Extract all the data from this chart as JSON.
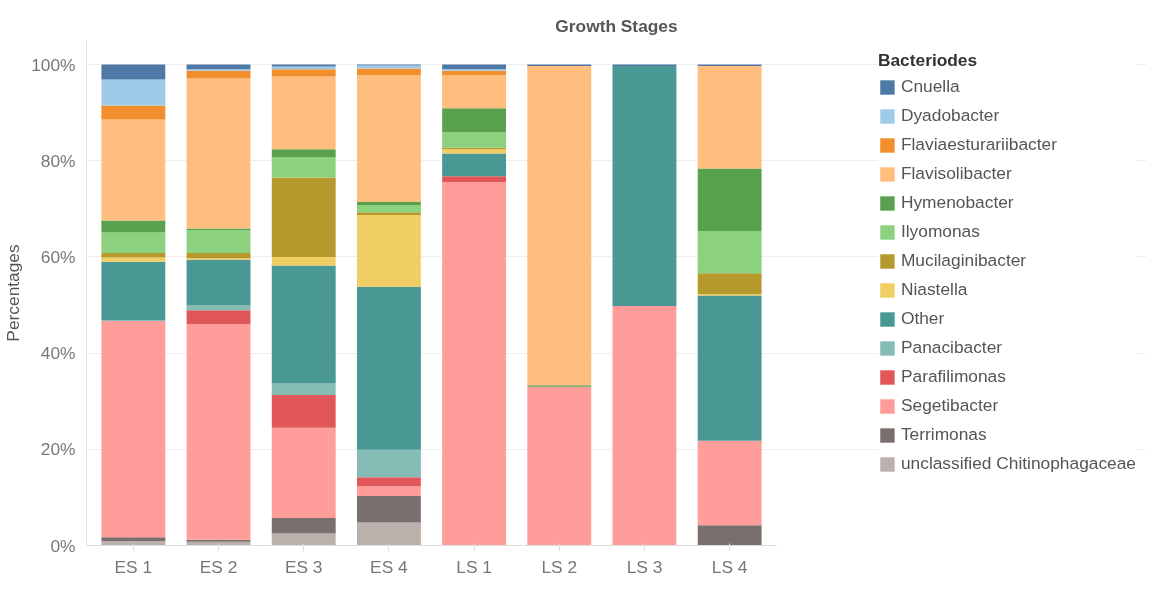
{
  "chart_data": {
    "type": "bar",
    "stacked": true,
    "title": "Growth Stages",
    "ylabel": "Percentages",
    "legend_title": "Bacteriodes",
    "categories": [
      "ES 1",
      "ES 2",
      "ES 3",
      "ES 4",
      "LS 1",
      "LS 2",
      "LS 3",
      "LS 4"
    ],
    "series": [
      {
        "name": "unclassified Chitinophagaceae",
        "color": "#bab0ac",
        "values": [
          0.9,
          0.8,
          2.5,
          4.8,
          null,
          null,
          null,
          null
        ]
      },
      {
        "name": "Terrimonas",
        "color": "#79706e",
        "values": [
          0.8,
          0.4,
          3.2,
          5.5,
          null,
          null,
          null,
          4.2
        ]
      },
      {
        "name": "Segetibacter",
        "color": "#ff9d9a",
        "values": [
          45.0,
          44.8,
          18.8,
          2.0,
          75.6,
          33.0,
          49.8,
          17.6
        ]
      },
      {
        "name": "Parafilimonas",
        "color": "#e15759",
        "values": [
          null,
          2.9,
          6.8,
          1.9,
          1.2,
          null,
          null,
          null
        ]
      },
      {
        "name": "Panacibacter",
        "color": "#86bcb6",
        "values": [
          0.2,
          1.1,
          2.5,
          5.7,
          null,
          null,
          null,
          null
        ]
      },
      {
        "name": "Other",
        "color": "#499894",
        "values": [
          12.1,
          9.4,
          24.4,
          33.9,
          4.7,
          null,
          49.9,
          30.2
        ]
      },
      {
        "name": "Niastella",
        "color": "#f1ce63",
        "values": [
          0.9,
          0.3,
          1.8,
          14.9,
          0.9,
          null,
          null,
          0.3
        ]
      },
      {
        "name": "Mucilaginibacter",
        "color": "#b6992d",
        "values": [
          0.9,
          1.1,
          16.5,
          0.6,
          0.3,
          null,
          null,
          4.3
        ]
      },
      {
        "name": "Ilyomonas",
        "color": "#8cd17d",
        "values": [
          4.3,
          4.8,
          4.3,
          1.5,
          3.2,
          null,
          null,
          8.8
        ]
      },
      {
        "name": "Hymenobacter",
        "color": "#59a14f",
        "values": [
          2.5,
          0.3,
          1.6,
          0.6,
          5.0,
          0.3,
          null,
          13.0
        ]
      },
      {
        "name": "Flavisolibacter",
        "color": "#ffbe7d",
        "values": [
          21.0,
          31.2,
          15.1,
          26.4,
          6.9,
          66.4,
          null,
          21.3
        ]
      },
      {
        "name": "Flaviaesturariibacter",
        "color": "#f28e2b",
        "values": [
          2.9,
          1.6,
          1.5,
          1.4,
          0.9,
          null,
          null,
          null
        ]
      },
      {
        "name": "Dyadobacter",
        "color": "#a0cbe8",
        "values": [
          5.4,
          0.3,
          0.6,
          0.6,
          0.3,
          null,
          null,
          null
        ]
      },
      {
        "name": "Cnuella",
        "color": "#4e79a7",
        "values": [
          3.1,
          1.0,
          0.4,
          0.2,
          1.0,
          0.3,
          0.3,
          0.3
        ]
      }
    ],
    "ylim": [
      0,
      105
    ],
    "yticks": [
      {
        "value": 0,
        "label": "0%"
      },
      {
        "value": 20,
        "label": "20%"
      },
      {
        "value": 40,
        "label": "40%"
      },
      {
        "value": 60,
        "label": "60%"
      },
      {
        "value": 80,
        "label": "80%"
      },
      {
        "value": 100,
        "label": "100%"
      }
    ],
    "grid": "y",
    "legend": "right"
  }
}
